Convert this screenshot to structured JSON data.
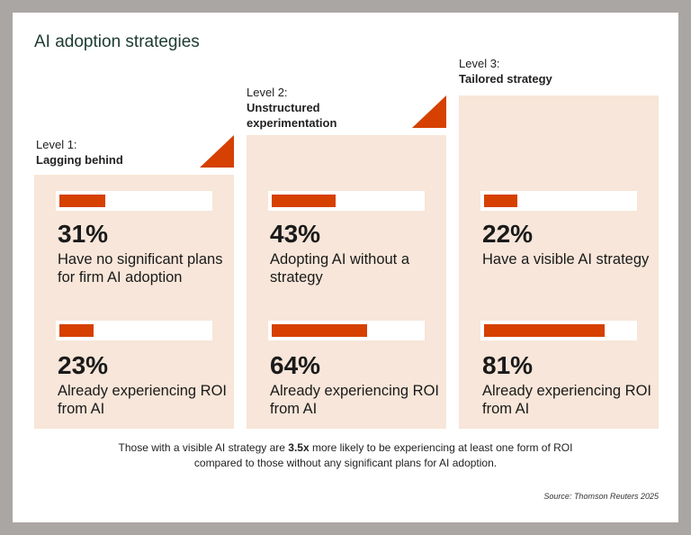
{
  "title": "AI adoption strategies",
  "footnote": {
    "line1_pre": "Those with a visible AI strategy are ",
    "line1_bold": "3.5x",
    "line1_post": " more likely to be experiencing at least one form of ROI",
    "line2": "compared to those without any significant plans for AI adoption."
  },
  "source": "Source: Thomson Reuters 2025",
  "colors": {
    "accent": "#d64000",
    "panel": "#f7e6d9",
    "title": "#1d3b2f"
  },
  "levels": [
    {
      "level": "Level 1:",
      "name": "Lagging behind",
      "metrics": [
        {
          "pct": "31%",
          "desc": "Have no significant plans for firm AI adoption"
        },
        {
          "pct": "23%",
          "desc": "Already experiencing ROI from AI"
        }
      ]
    },
    {
      "level": "Level 2:",
      "name": "Unstructured experimentation",
      "metrics": [
        {
          "pct": "43%",
          "desc": "Adopting AI without a strategy"
        },
        {
          "pct": "64%",
          "desc": "Already experiencing ROI from AI"
        }
      ]
    },
    {
      "level": "Level 3:",
      "name": "Tailored strategy",
      "metrics": [
        {
          "pct": "22%",
          "desc": "Have a visible AI strategy"
        },
        {
          "pct": "81%",
          "desc": "Already experiencing ROI from AI"
        }
      ]
    }
  ],
  "chart_data": {
    "type": "bar",
    "title": "AI adoption strategies",
    "categories": [
      "Level 1: Lagging behind",
      "Level 2: Unstructured experimentation",
      "Level 3: Tailored strategy"
    ],
    "series": [
      {
        "values": [
          31,
          43,
          22
        ]
      },
      {
        "name": "Already experiencing ROI from AI",
        "values": [
          23,
          64,
          81
        ]
      }
    ],
    "ylim": [
      0,
      100
    ]
  }
}
